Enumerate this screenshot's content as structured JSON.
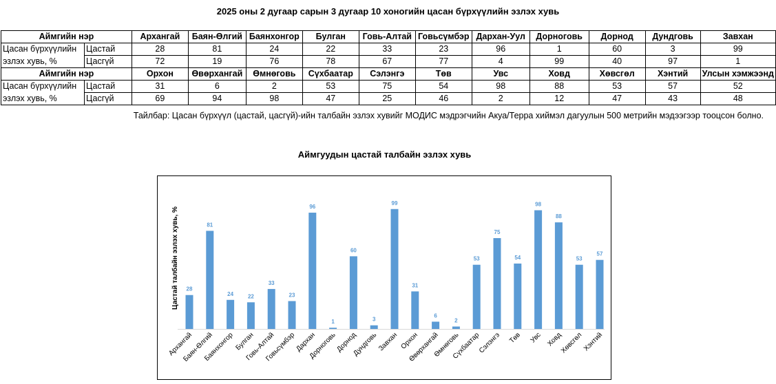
{
  "title": "2025 оны 2 дугаар сарын 3 дугаар 10 хоногийн цасан бүрхүүлийн эзлэх хувь",
  "table": {
    "header_label": "Аймгийн нэр",
    "row_label_line1": "Цасан бүрхүүлийн",
    "row_label_line2": "эзлэх хувь, %",
    "sub_label_snow": "Цастай",
    "sub_label_nosnow": "Цасгүй",
    "block1": {
      "names": [
        "Архангай",
        "Баян-Өлгий",
        "Баянхонгор",
        "Булган",
        "Говь-Алтай",
        "Говьсүмбэр",
        "Дархан-Уул",
        "Дорноговь",
        "Дорнод",
        "Дундговь",
        "Завхан"
      ],
      "snow": [
        "28",
        "81",
        "24",
        "22",
        "33",
        "23",
        "96",
        "1",
        "60",
        "3",
        "99"
      ],
      "nosnow": [
        "72",
        "19",
        "76",
        "78",
        "67",
        "77",
        "4",
        "99",
        "40",
        "97",
        "1"
      ]
    },
    "block2": {
      "names": [
        "Орхон",
        "Өвөрхангай",
        "Өмнөговь",
        "Сүхбаатар",
        "Сэлэнгэ",
        "Төв",
        "Увс",
        "Ховд",
        "Хөвсгөл",
        "Хэнтий",
        "Улсын хэмжээнд"
      ],
      "snow": [
        "31",
        "6",
        "2",
        "53",
        "75",
        "54",
        "98",
        "88",
        "53",
        "57",
        "52"
      ],
      "nosnow": [
        "69",
        "94",
        "98",
        "47",
        "25",
        "46",
        "2",
        "12",
        "47",
        "43",
        "48"
      ]
    }
  },
  "note": "Тайлбар: Цасан бүрхүүл (цастай, цасгүй)-ийн талбайн эзлэх хувийг МОДИС мэдрэгчийн Акуа/Терра хиймэл дагуулын 500 метрийн мэдээгээр тооцсон болно.",
  "chart_data": {
    "type": "bar",
    "title": "Аймгуудын цастай талбайн эзлэх хувь",
    "xlabel": "",
    "ylabel": "Цастай талбайн эзлэх хувь, %",
    "ylim": [
      0,
      100
    ],
    "grid": false,
    "legend": "none",
    "bar_color": "#5b9bd5",
    "label_color": "#5b9bd5",
    "categories": [
      "Архангай",
      "Баян-Өлгий",
      "Баянхонгор",
      "Булган",
      "Говь-Алтай",
      "Говьсүмбэр",
      "Дархан",
      "Дорноговь",
      "Дорнод",
      "Дундговь",
      "Завхан",
      "Орхон",
      "Өвөрхангай",
      "Өмнөговь",
      "Сүхбаатар",
      "Сэлэнгэ",
      "Төв",
      "Увс",
      "Ховд",
      "Хөвсгөл",
      "Хэнтий"
    ],
    "values": [
      28,
      81,
      24,
      22,
      33,
      23,
      96,
      1,
      60,
      3,
      99,
      31,
      6,
      2,
      53,
      75,
      54,
      98,
      88,
      53,
      57
    ]
  }
}
